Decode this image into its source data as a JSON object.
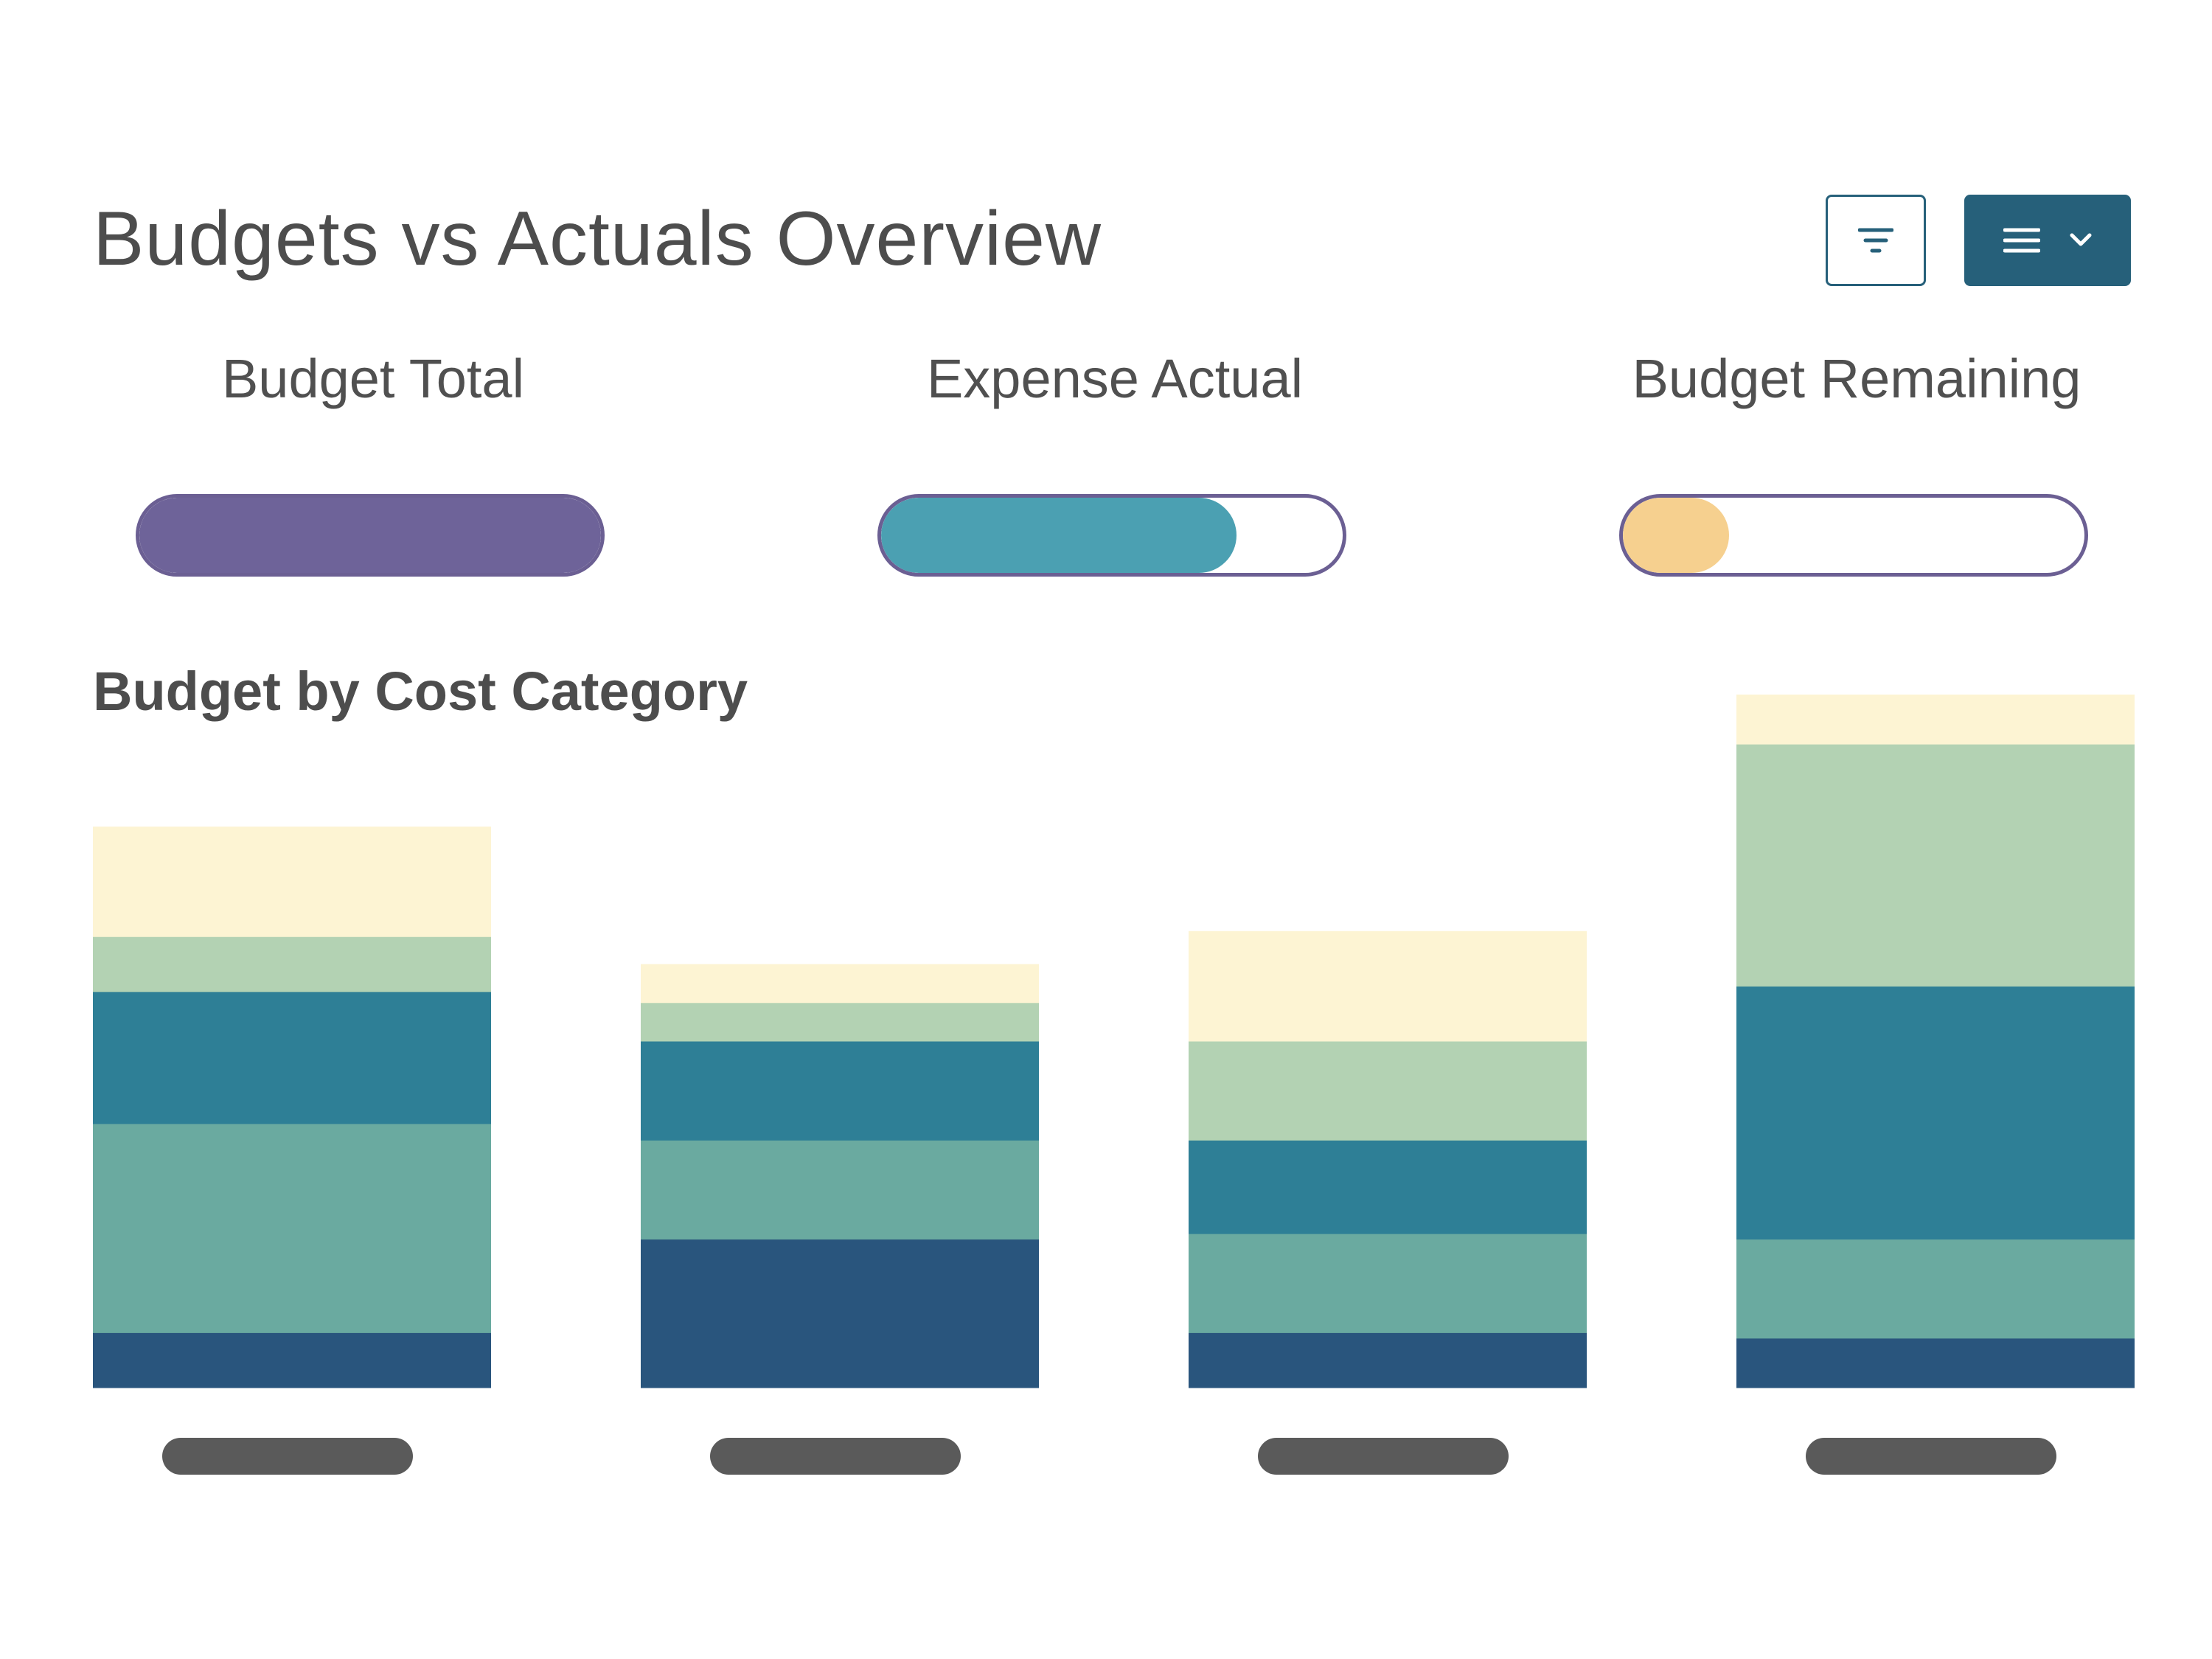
{
  "header": {
    "title": "Budgets vs Actuals Overview",
    "filter_icon": "filter-icon",
    "menu_icon": "hamburger-menu-icon",
    "menu_chevron_icon": "chevron-down-icon",
    "accent": "#26607a"
  },
  "kpis": [
    {
      "label": "Budget Total",
      "fraction": 1.0,
      "color": "#6e6399"
    },
    {
      "label": "Expense Actual",
      "fraction": 0.77,
      "color": "#4ba0b2"
    },
    {
      "label": "Budget Remaining",
      "fraction": 0.23,
      "color": "#f6d08f"
    }
  ],
  "section": {
    "title": "Budget by Cost Category"
  },
  "chart_data": {
    "type": "bar",
    "stacked": true,
    "title": "Budget by Cost Category",
    "categories": [
      "",
      "",
      "",
      ""
    ],
    "series": [
      {
        "values": [
          1.0,
          2.7,
          1.0,
          0.9
        ],
        "color": "#29557d"
      },
      {
        "values": [
          3.8,
          1.8,
          1.8,
          1.8
        ],
        "color": "#6aaaa0"
      },
      {
        "values": [
          2.4,
          1.8,
          1.7,
          4.6
        ],
        "color": "#2e7f96"
      },
      {
        "values": [
          1.0,
          0.7,
          1.8,
          4.4
        ],
        "color": "#b3d2b3"
      },
      {
        "values": [
          2.0,
          0.7,
          2.0,
          0.9
        ],
        "color": "#fdf4d3"
      }
    ],
    "ylim": [
      0,
      12.6
    ],
    "grid": false,
    "legend": "none",
    "tick_label_color": "#5a5a5a"
  }
}
